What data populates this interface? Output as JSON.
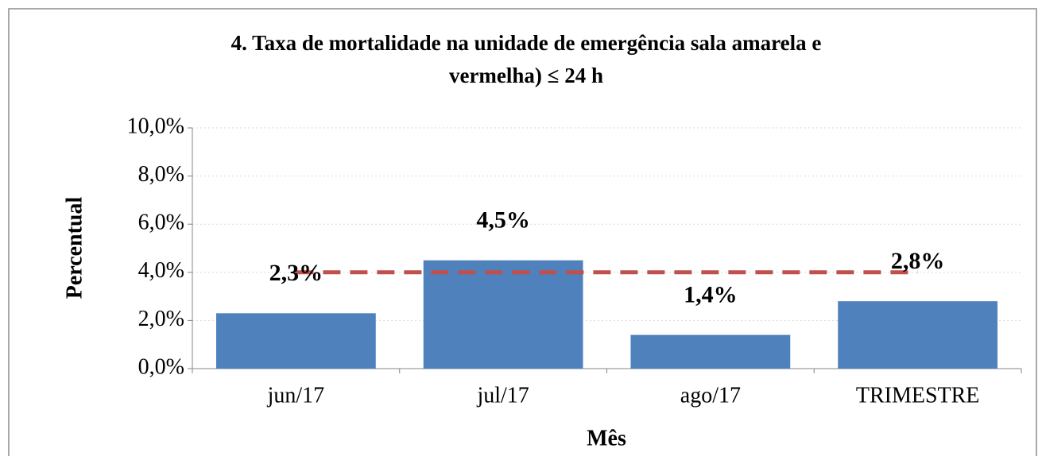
{
  "chart_data": {
    "type": "bar",
    "title": [
      "4. Taxa de mortalidade  na unidade  de emergência sala amarela e",
      "vermelha) ≤ 24 h"
    ],
    "x_label": "Mês",
    "y_label": "Percentual",
    "categories": [
      "jun/17",
      "jul/17",
      "ago/17",
      "TRIMESTRE"
    ],
    "values": [
      2.3,
      4.5,
      1.4,
      2.8
    ],
    "value_labels": [
      "2,3%",
      "4,5%",
      "1,4%",
      "2,8%"
    ],
    "color": "#4f81bd",
    "target": {
      "value": 4,
      "color": "#c0504d"
    },
    "ylim": [
      0,
      10
    ],
    "yticks": [
      {
        "value": 0,
        "label": "0,0%"
      },
      {
        "value": 2,
        "label": "2,0%"
      },
      {
        "value": 4,
        "label": "4,0%"
      },
      {
        "value": 6,
        "label": "6,0%"
      },
      {
        "value": 8,
        "label": "8,0%"
      },
      {
        "value": 10,
        "label": "10,0%"
      }
    ],
    "grid": true
  }
}
